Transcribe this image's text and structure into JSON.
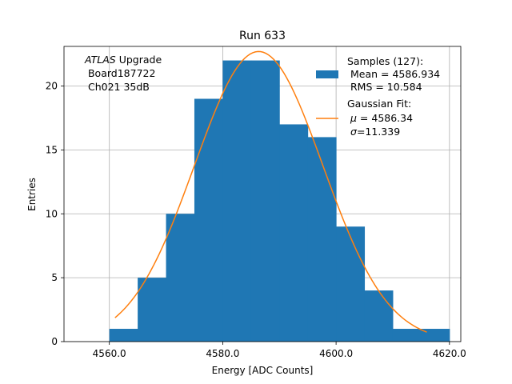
{
  "chart_data": {
    "type": "bar",
    "title": "Run 633",
    "xlabel": "Energy [ADC Counts]",
    "ylabel": "Entries",
    "xlim": [
      4552,
      4622
    ],
    "ylim": [
      0,
      23.1
    ],
    "grid": true,
    "xticks": [
      4560,
      4580,
      4600,
      4620
    ],
    "xtick_labels": [
      "4560.0",
      "4580.0",
      "4600.0",
      "4620.0"
    ],
    "yticks": [
      0,
      5,
      10,
      15,
      20
    ],
    "ytick_labels": [
      "0",
      "5",
      "10",
      "15",
      "20"
    ],
    "histogram": {
      "bin_edges": [
        4560,
        4565,
        4570,
        4575,
        4580,
        4585,
        4590,
        4595,
        4600,
        4605,
        4610,
        4615,
        4620
      ],
      "counts": [
        1,
        5,
        10,
        19,
        22,
        22,
        17,
        16,
        9,
        4,
        1,
        1
      ],
      "color": "#1f77b4"
    },
    "gaussian_fit": {
      "mu": 4586.34,
      "sigma": 11.339,
      "amplitude": 22.7,
      "x_range": [
        4561,
        4616
      ],
      "color": "#ff7f0e"
    },
    "annotation": {
      "line1_italic": "ATLAS",
      "line1_rest": " Upgrade",
      "line2": " Board187722",
      "line3": " Ch021 35dB"
    },
    "legend": {
      "position": "top-right",
      "samples": {
        "line1": "Samples (127):",
        "line2": " Mean = 4586.934",
        "line3": " RMS = 10.584"
      },
      "fit": {
        "line1": "Gaussian Fit:",
        "line2_sym": "μ",
        "line2_rest": " = 4586.34",
        "line3_sym": "σ",
        "line3_rest": "=11.339"
      }
    }
  }
}
